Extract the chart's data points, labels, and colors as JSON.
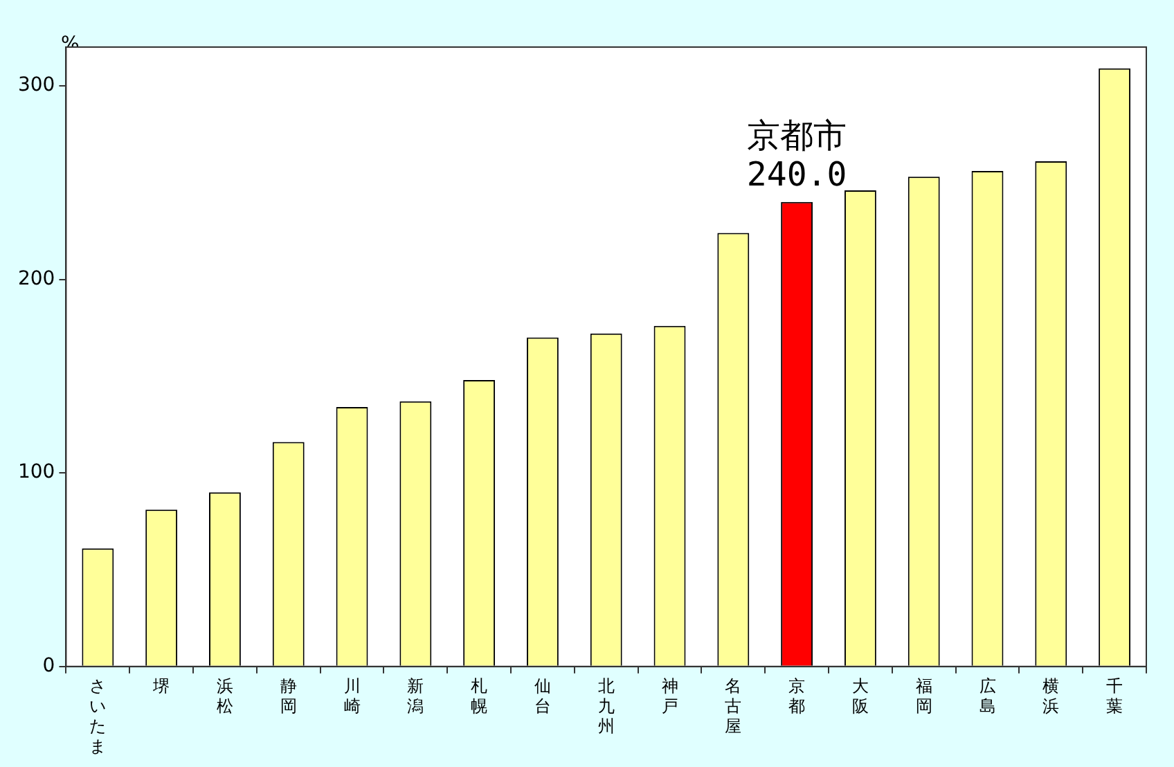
{
  "chart_data": {
    "type": "bar",
    "ylabel": "%",
    "categories": [
      "さいたま",
      "堺",
      "浜松",
      "静岡",
      "川崎",
      "新潟",
      "札幌",
      "仙台",
      "北九州",
      "神戸",
      "名古屋",
      "京都",
      "大阪",
      "福岡",
      "広島",
      "横浜",
      "千葉"
    ],
    "values": [
      61,
      81,
      90,
      116,
      134,
      137,
      148,
      170,
      172,
      176,
      224,
      240,
      246,
      253,
      256,
      261,
      309
    ],
    "colors": [
      "#ffff99",
      "#ffff99",
      "#ffff99",
      "#ffff99",
      "#ffff99",
      "#ffff99",
      "#ffff99",
      "#ffff99",
      "#ffff99",
      "#ffff99",
      "#ffff99",
      "#ff0000",
      "#ffff99",
      "#ffff99",
      "#ffff99",
      "#ffff99",
      "#ffff99"
    ],
    "value_labels": [
      null,
      null,
      null,
      null,
      null,
      null,
      null,
      null,
      null,
      null,
      null,
      "240.0",
      null,
      null,
      null,
      null,
      null
    ],
    "annotations": [
      {
        "text": "京都市",
        "x": "京都",
        "y": 240
      }
    ],
    "ylim": [
      0,
      320
    ],
    "yticks": [
      0,
      100,
      200,
      300
    ],
    "grid": false,
    "legend": false
  }
}
